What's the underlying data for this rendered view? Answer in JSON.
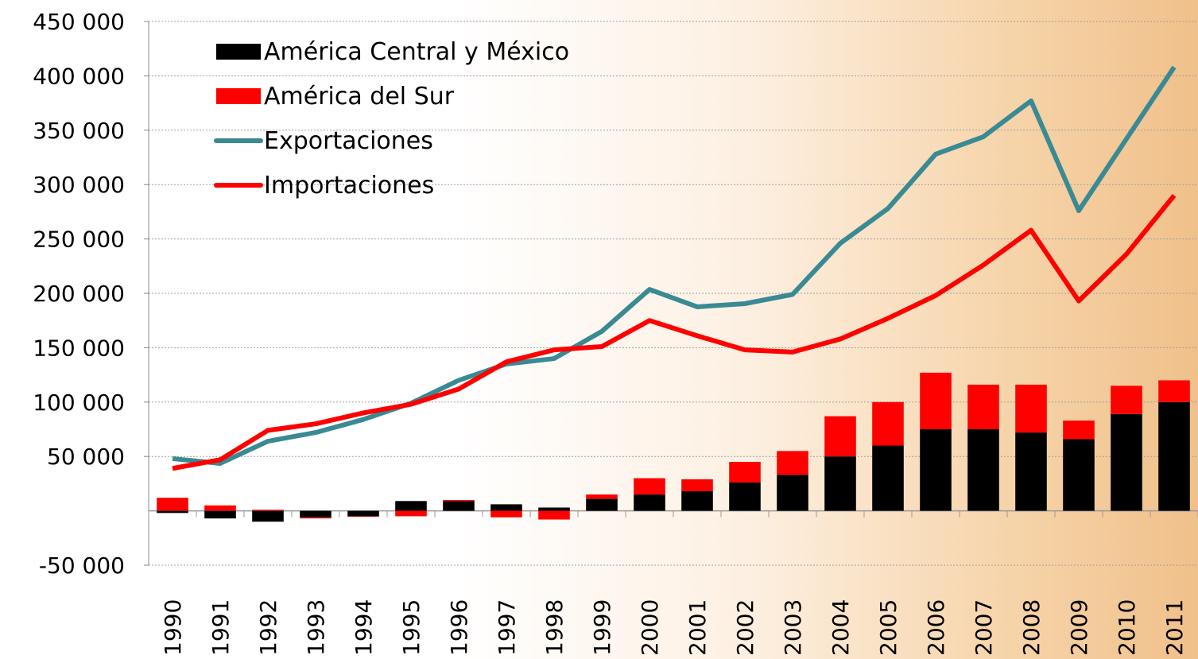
{
  "chart_data": {
    "type": "combo",
    "categories": [
      "1990",
      "1991",
      "1992",
      "1993",
      "1994",
      "1995",
      "1996",
      "1997",
      "1998",
      "1999",
      "2000",
      "2001",
      "2002",
      "2003",
      "2004",
      "2005",
      "2006",
      "2007",
      "2008",
      "2009",
      "2010",
      "2011"
    ],
    "series": [
      {
        "name": "América Central y México",
        "type": "bar",
        "color": "#000000",
        "values": [
          -2000,
          -7000,
          -10000,
          -6000,
          -5000,
          9000,
          9000,
          6000,
          3000,
          11000,
          15000,
          18000,
          26000,
          33000,
          50000,
          60000,
          75000,
          75000,
          72000,
          66000,
          89000,
          100000
        ]
      },
      {
        "name": "América del Sur",
        "type": "bar",
        "color": "#ff0000",
        "values": [
          12000,
          5000,
          1000,
          -1000,
          -500,
          -5000,
          1000,
          -6000,
          -8000,
          4000,
          15000,
          11000,
          19000,
          22000,
          37000,
          40000,
          52000,
          41000,
          44000,
          17000,
          26000,
          20000
        ]
      },
      {
        "name": "Exportaciones",
        "type": "line",
        "color": "#3a8a94",
        "values": [
          48000,
          43600,
          64000,
          72000,
          84000,
          99000,
          120000,
          135000,
          140000,
          165000,
          203600,
          187600,
          190500,
          199000,
          246000,
          278000,
          328000,
          344000,
          377000,
          276000,
          342000,
          408000
        ]
      },
      {
        "name": "Importaciones",
        "type": "line",
        "color": "#ff0000",
        "values": [
          39000,
          47000,
          74000,
          80000,
          90000,
          98000,
          112000,
          137000,
          148000,
          151000,
          175000,
          161000,
          148000,
          146000,
          158000,
          177000,
          198000,
          226000,
          258000,
          193000,
          236000,
          290000
        ]
      }
    ],
    "ylim": [
      -50000,
      450000
    ],
    "yticks": [
      {
        "value": -50000,
        "label": "-50 000"
      },
      {
        "value": 50000,
        "label": "50 000"
      },
      {
        "value": 100000,
        "label": "100 000"
      },
      {
        "value": 150000,
        "label": "150 000"
      },
      {
        "value": 200000,
        "label": "200 000"
      },
      {
        "value": 250000,
        "label": "250 000"
      },
      {
        "value": 300000,
        "label": "300 000"
      },
      {
        "value": 350000,
        "label": "350 000"
      },
      {
        "value": 400000,
        "label": "400 000"
      },
      {
        "value": 450000,
        "label": "450 000"
      }
    ],
    "grid": true,
    "legend": "top-left"
  }
}
